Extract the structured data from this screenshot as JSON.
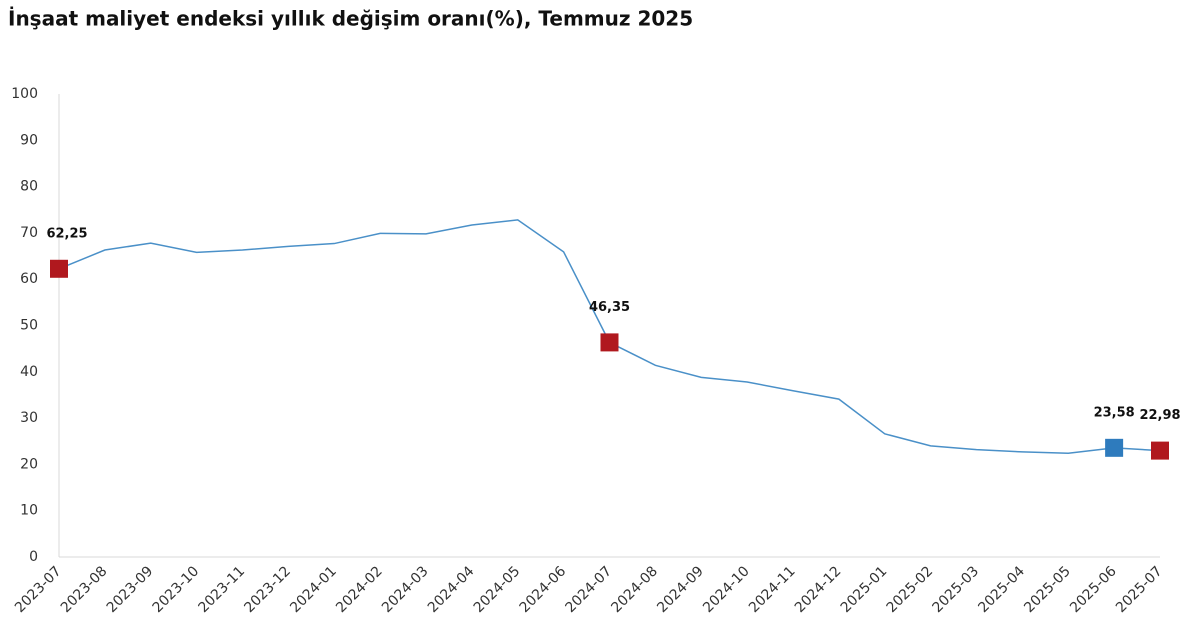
{
  "chart_data": {
    "type": "line",
    "title": "İnşaat maliyet endeksi yıllık değişim oranı(%), Temmuz 2025",
    "categories": [
      "2023-07",
      "2023-08",
      "2023-09",
      "2023-10",
      "2023-11",
      "2023-12",
      "2024-01",
      "2024-02",
      "2024-03",
      "2024-04",
      "2024-05",
      "2024-06",
      "2024-07",
      "2024-08",
      "2024-09",
      "2024-10",
      "2024-11",
      "2024-12",
      "2025-01",
      "2025-02",
      "2025-03",
      "2025-04",
      "2025-05",
      "2025-06",
      "2025-07"
    ],
    "series": [
      {
        "color": "#4a90c8",
        "values": [
          62.25,
          66.3,
          67.8,
          65.8,
          66.3,
          67.1,
          67.7,
          69.9,
          69.8,
          71.7,
          72.8,
          65.9,
          46.35,
          41.4,
          38.8,
          37.8,
          35.9,
          34.1,
          26.6,
          24.0,
          23.2,
          22.7,
          22.4,
          23.58,
          22.98
        ],
        "value_labels": [
          "62,25",
          null,
          null,
          null,
          null,
          null,
          null,
          null,
          null,
          null,
          null,
          null,
          "46,35",
          null,
          null,
          null,
          null,
          null,
          null,
          null,
          null,
          null,
          null,
          "23,58",
          "22,98"
        ],
        "marker_colors": [
          "#b0181e",
          null,
          null,
          null,
          null,
          null,
          null,
          null,
          null,
          null,
          null,
          null,
          "#b0181e",
          null,
          null,
          null,
          null,
          null,
          null,
          null,
          null,
          null,
          null,
          "#2e7bbd",
          "#b0181e"
        ]
      }
    ],
    "ylim": [
      0,
      100
    ],
    "yticks": [
      0,
      10,
      20,
      30,
      40,
      50,
      60,
      70,
      80,
      90,
      100
    ],
    "grid": false
  }
}
